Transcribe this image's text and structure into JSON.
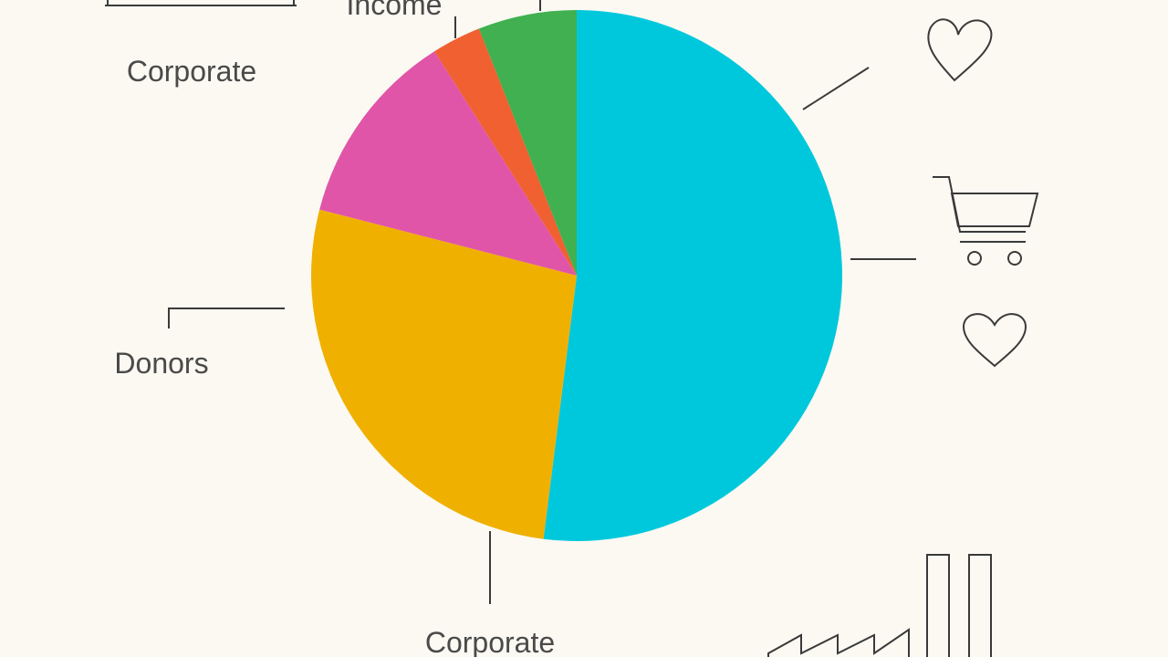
{
  "chart_data": {
    "type": "pie",
    "values": [
      52,
      27,
      12,
      3,
      6
    ],
    "colors": [
      "#00c8dc",
      "#f0b000",
      "#e055a8",
      "#f06030",
      "#40b050"
    ],
    "annotations": [
      "Income",
      "Corporate",
      "Donors",
      "Corporate"
    ]
  }
}
